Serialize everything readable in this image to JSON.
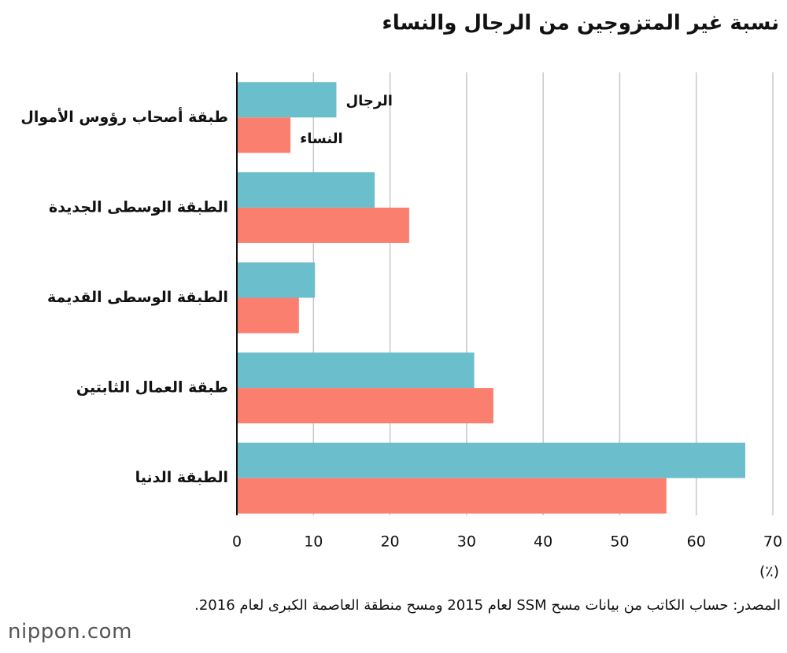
{
  "chart_data": {
    "type": "barh",
    "title": "نسبة غير المتزوجين من الرجال والنساء",
    "categories": [
      "طبقة أصحاب رؤوس الأموال",
      "الطبقة الوسطى الجديدة",
      "الطبقة الوسطى القديمة",
      "طبقة العمال الثابتين",
      "الطبقة الدنيا"
    ],
    "series": [
      {
        "name": "الرجال",
        "color": "#6bbfcc",
        "values": [
          13,
          18,
          10.2,
          31,
          66.4
        ]
      },
      {
        "name": "النساء",
        "color": "#fa7f6e",
        "values": [
          7,
          22.5,
          8.1,
          33.5,
          56.1
        ]
      }
    ],
    "xlim": [
      0,
      70
    ],
    "xticks": [
      0,
      10,
      20,
      30,
      40,
      50,
      60,
      70
    ],
    "x_label": "(٪)",
    "grid": true,
    "source": "المصدر: حساب الكاتب من بيانات مسح SSM لعام 2015 ومسح منطقة العاصمة الكبرى لعام 2016.",
    "logo": "nippon.com"
  }
}
